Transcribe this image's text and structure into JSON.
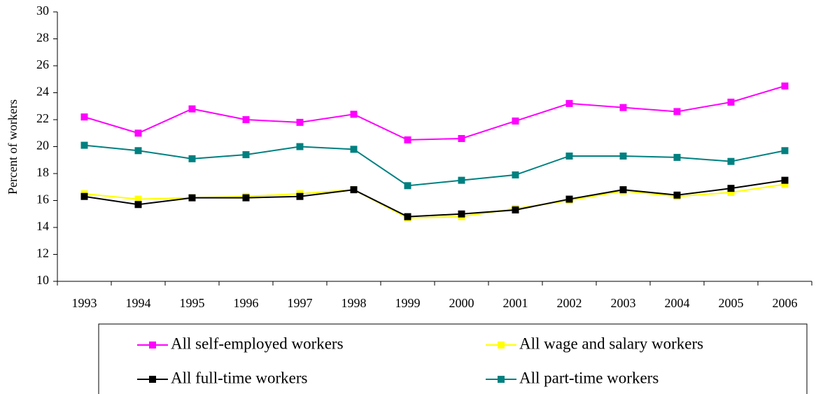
{
  "chart_data": {
    "type": "line",
    "y_label": "Percent of workers",
    "categories": [
      "1993",
      "1994",
      "1995",
      "1996",
      "1997",
      "1998",
      "1999",
      "2000",
      "2001",
      "2002",
      "2003",
      "2004",
      "2005",
      "2006"
    ],
    "series": [
      {
        "name": "All self-employed workers",
        "color": "#ff00ff",
        "values": [
          22.2,
          21.0,
          22.8,
          22.0,
          21.8,
          22.4,
          20.5,
          20.6,
          21.9,
          23.2,
          22.9,
          22.6,
          23.3,
          24.5
        ]
      },
      {
        "name": "All wage and salary workers",
        "color": "#ffff00",
        "values": [
          16.5,
          16.1,
          16.2,
          16.3,
          16.5,
          16.8,
          14.7,
          14.8,
          15.4,
          16.0,
          16.7,
          16.3,
          16.6,
          17.2
        ]
      },
      {
        "name": "All full-time workers",
        "color": "#000000",
        "values": [
          16.3,
          15.7,
          16.2,
          16.2,
          16.3,
          16.8,
          14.8,
          15.0,
          15.3,
          16.1,
          16.8,
          16.4,
          16.9,
          17.5
        ]
      },
      {
        "name": "All part-time workers",
        "color": "#008080",
        "values": [
          20.1,
          19.7,
          19.1,
          19.4,
          20.0,
          19.8,
          17.1,
          17.5,
          17.9,
          19.3,
          19.3,
          19.2,
          18.9,
          19.7
        ]
      }
    ],
    "ylim": [
      10,
      30
    ],
    "yticks": [
      10,
      12,
      14,
      16,
      18,
      20,
      22,
      24,
      26,
      28,
      30
    ],
    "grid": false,
    "legend": "bottom"
  }
}
